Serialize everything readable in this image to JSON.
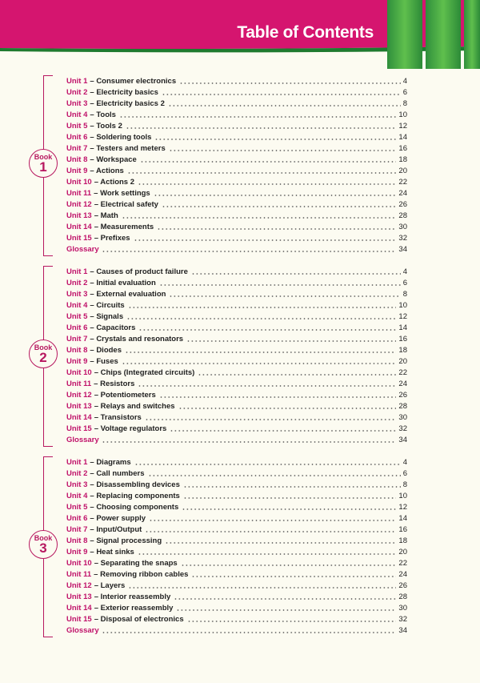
{
  "header": {
    "title": "Table of Contents"
  },
  "books": [
    {
      "label": "Book",
      "number": "1",
      "entries": [
        {
          "unit": "Unit 1",
          "title": "– Consumer electronics",
          "page": 4
        },
        {
          "unit": "Unit 2",
          "title": "– Electricity basics",
          "page": 6
        },
        {
          "unit": "Unit 3",
          "title": "– Electricity basics 2",
          "page": 8
        },
        {
          "unit": "Unit 4",
          "title": "– Tools",
          "page": 10
        },
        {
          "unit": "Unit 5",
          "title": "– Tools 2",
          "page": 12
        },
        {
          "unit": "Unit 6",
          "title": "– Soldering tools",
          "page": 14
        },
        {
          "unit": "Unit 7",
          "title": "– Testers and meters",
          "page": 16
        },
        {
          "unit": "Unit 8",
          "title": "– Workspace",
          "page": 18
        },
        {
          "unit": "Unit 9",
          "title": "– Actions",
          "page": 20
        },
        {
          "unit": "Unit 10",
          "title": "– Actions 2",
          "page": 22
        },
        {
          "unit": "Unit 11",
          "title": "– Work settings",
          "page": 24
        },
        {
          "unit": "Unit 12",
          "title": "– Electrical safety",
          "page": 26
        },
        {
          "unit": "Unit 13",
          "title": "– Math",
          "page": 28
        },
        {
          "unit": "Unit 14",
          "title": "– Measurements",
          "page": 30
        },
        {
          "unit": "Unit 15",
          "title": "– Prefixes",
          "page": 32
        },
        {
          "unit": "Glossary",
          "page": 34
        }
      ]
    },
    {
      "label": "Book",
      "number": "2",
      "entries": [
        {
          "unit": "Unit 1",
          "title": "– Causes of product failure",
          "page": 4
        },
        {
          "unit": "Unit 2",
          "title": "– Initial evaluation",
          "page": 6
        },
        {
          "unit": "Unit 3",
          "title": "– External evaluation",
          "page": 8
        },
        {
          "unit": "Unit 4",
          "title": "– Circuits",
          "page": 10
        },
        {
          "unit": "Unit 5",
          "title": "– Signals",
          "page": 12
        },
        {
          "unit": "Unit 6",
          "title": "– Capacitors",
          "page": 14
        },
        {
          "unit": "Unit 7",
          "title": "– Crystals and resonators",
          "page": 16
        },
        {
          "unit": "Unit 8",
          "title": "– Diodes",
          "page": 18
        },
        {
          "unit": "Unit 9",
          "title": "– Fuses",
          "page": 20
        },
        {
          "unit": "Unit 10",
          "title": "– Chips (Integrated circuits)",
          "page": 22
        },
        {
          "unit": "Unit 11",
          "title": "– Resistors",
          "page": 24
        },
        {
          "unit": "Unit 12",
          "title": "– Potentiometers",
          "page": 26
        },
        {
          "unit": "Unit 13",
          "title": "– Relays and switches",
          "page": 28
        },
        {
          "unit": "Unit 14",
          "title": "– Transistors",
          "page": 30
        },
        {
          "unit": "Unit 15",
          "title": "– Voltage regulators",
          "page": 32
        },
        {
          "unit": "Glossary",
          "page": 34
        }
      ]
    },
    {
      "label": "Book",
      "number": "3",
      "entries": [
        {
          "unit": "Unit 1",
          "title": "– Diagrams",
          "page": 4
        },
        {
          "unit": "Unit 2",
          "title": "– Call numbers",
          "page": 6
        },
        {
          "unit": "Unit 3",
          "title": "– Disassembling devices",
          "page": 8
        },
        {
          "unit": "Unit 4",
          "title": "– Replacing components",
          "page": 10
        },
        {
          "unit": "Unit 5",
          "title": "– Choosing components",
          "page": 12
        },
        {
          "unit": "Unit 6",
          "title": "– Power supply",
          "page": 14
        },
        {
          "unit": "Unit 7",
          "title": "– Input/Output",
          "page": 16
        },
        {
          "unit": "Unit 8",
          "title": "– Signal processing",
          "page": 18
        },
        {
          "unit": "Unit 9",
          "title": "– Heat sinks",
          "page": 20
        },
        {
          "unit": "Unit 10",
          "title": "– Separating the snaps",
          "page": 22
        },
        {
          "unit": "Unit 11",
          "title": "– Removing ribbon cables",
          "page": 24
        },
        {
          "unit": "Unit 12",
          "title": "– Layers",
          "page": 26
        },
        {
          "unit": "Unit 13",
          "title": "– Interior reassembly",
          "page": 28
        },
        {
          "unit": "Unit 14",
          "title": "– Exterior reassembly",
          "page": 30
        },
        {
          "unit": "Unit 15",
          "title": "– Disposal of electronics",
          "page": 32
        },
        {
          "unit": "Glossary",
          "page": 34
        }
      ]
    }
  ]
}
